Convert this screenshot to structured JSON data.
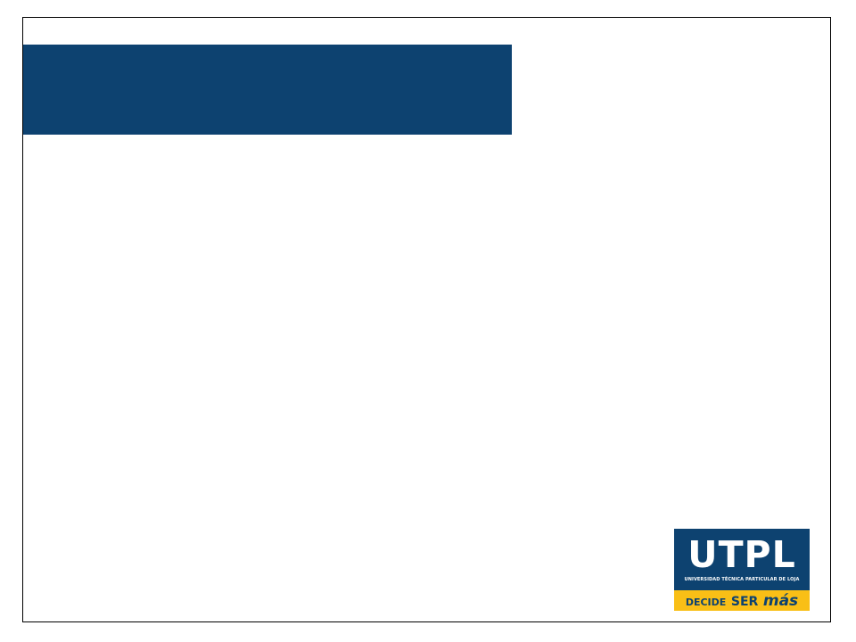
{
  "colors": {
    "brand_blue": "#0d4270",
    "brand_yellow": "#f9bf16",
    "background": "#ffffff",
    "border": "#000000"
  },
  "logo": {
    "name": "UTPL",
    "subtitle": "UNIVERSIDAD TÉCNICA PARTICULAR DE LOJA",
    "tagline_1": "DECIDE",
    "tagline_2": "SER",
    "tagline_3": "más"
  }
}
